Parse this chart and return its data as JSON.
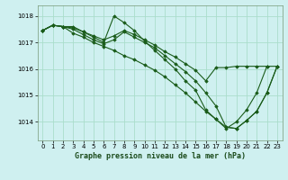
{
  "title": "Graphe pression niveau de la mer (hPa)",
  "background_color": "#cff0f0",
  "grid_color": "#aaddcc",
  "line_color": "#1a5c1a",
  "marker_color": "#1a5c1a",
  "xlim": [
    -0.5,
    23.5
  ],
  "ylim": [
    1013.3,
    1018.4
  ],
  "yticks": [
    1014,
    1015,
    1016,
    1017,
    1018
  ],
  "xticks": [
    0,
    1,
    2,
    3,
    4,
    5,
    6,
    7,
    8,
    9,
    10,
    11,
    12,
    13,
    14,
    15,
    16,
    17,
    18,
    19,
    20,
    21,
    22,
    23
  ],
  "series": [
    {
      "x": [
        0,
        1,
        2,
        3,
        4,
        5,
        6,
        7,
        8,
        9,
        10,
        11,
        12,
        13,
        14,
        15,
        16,
        17,
        18,
        19,
        20,
        21,
        22
      ],
      "y": [
        1017.45,
        1017.65,
        1017.6,
        1017.55,
        1017.4,
        1017.25,
        1017.1,
        1017.25,
        1017.45,
        1017.3,
        1017.1,
        1016.9,
        1016.65,
        1016.45,
        1016.2,
        1015.95,
        1015.55,
        1016.05,
        1016.05,
        1016.1,
        1016.1,
        1016.1,
        1016.1
      ]
    },
    {
      "x": [
        0,
        1,
        2,
        3,
        4,
        5,
        6,
        7,
        8,
        9,
        10,
        11,
        12,
        13,
        14,
        15,
        16,
        17,
        18,
        19,
        20,
        21,
        22,
        23
      ],
      "y": [
        1017.45,
        1017.65,
        1017.6,
        1017.6,
        1017.4,
        1017.2,
        1017.0,
        1018.0,
        1017.75,
        1017.45,
        1017.05,
        1016.7,
        1016.35,
        1016.0,
        1015.55,
        1015.2,
        1014.45,
        1014.1,
        1013.75,
        1014.0,
        1014.45,
        1015.1,
        1016.1,
        1016.1
      ]
    },
    {
      "x": [
        0,
        1,
        2,
        3,
        4,
        5,
        6,
        7,
        8,
        9,
        10,
        11,
        12,
        13,
        14,
        15,
        16,
        17,
        18,
        19,
        20,
        21,
        22,
        23
      ],
      "y": [
        1017.45,
        1017.65,
        1017.6,
        1017.35,
        1017.2,
        1017.0,
        1016.85,
        1016.7,
        1016.5,
        1016.35,
        1016.15,
        1015.95,
        1015.7,
        1015.4,
        1015.1,
        1014.75,
        1014.4,
        1014.1,
        1013.8,
        1013.75,
        1014.05,
        1014.4,
        1015.1,
        1016.1
      ]
    },
    {
      "x": [
        0,
        1,
        2,
        3,
        4,
        5,
        6,
        7,
        8,
        9,
        10,
        11,
        12,
        13,
        14,
        15,
        16,
        17,
        18,
        19,
        20,
        21,
        22,
        23
      ],
      "y": [
        1017.45,
        1017.65,
        1017.6,
        1017.5,
        1017.3,
        1017.1,
        1016.95,
        1017.1,
        1017.4,
        1017.2,
        1017.0,
        1016.8,
        1016.5,
        1016.2,
        1015.9,
        1015.55,
        1015.1,
        1014.6,
        1013.8,
        1013.75,
        1014.05,
        1014.4,
        1015.1,
        1016.1
      ]
    }
  ]
}
